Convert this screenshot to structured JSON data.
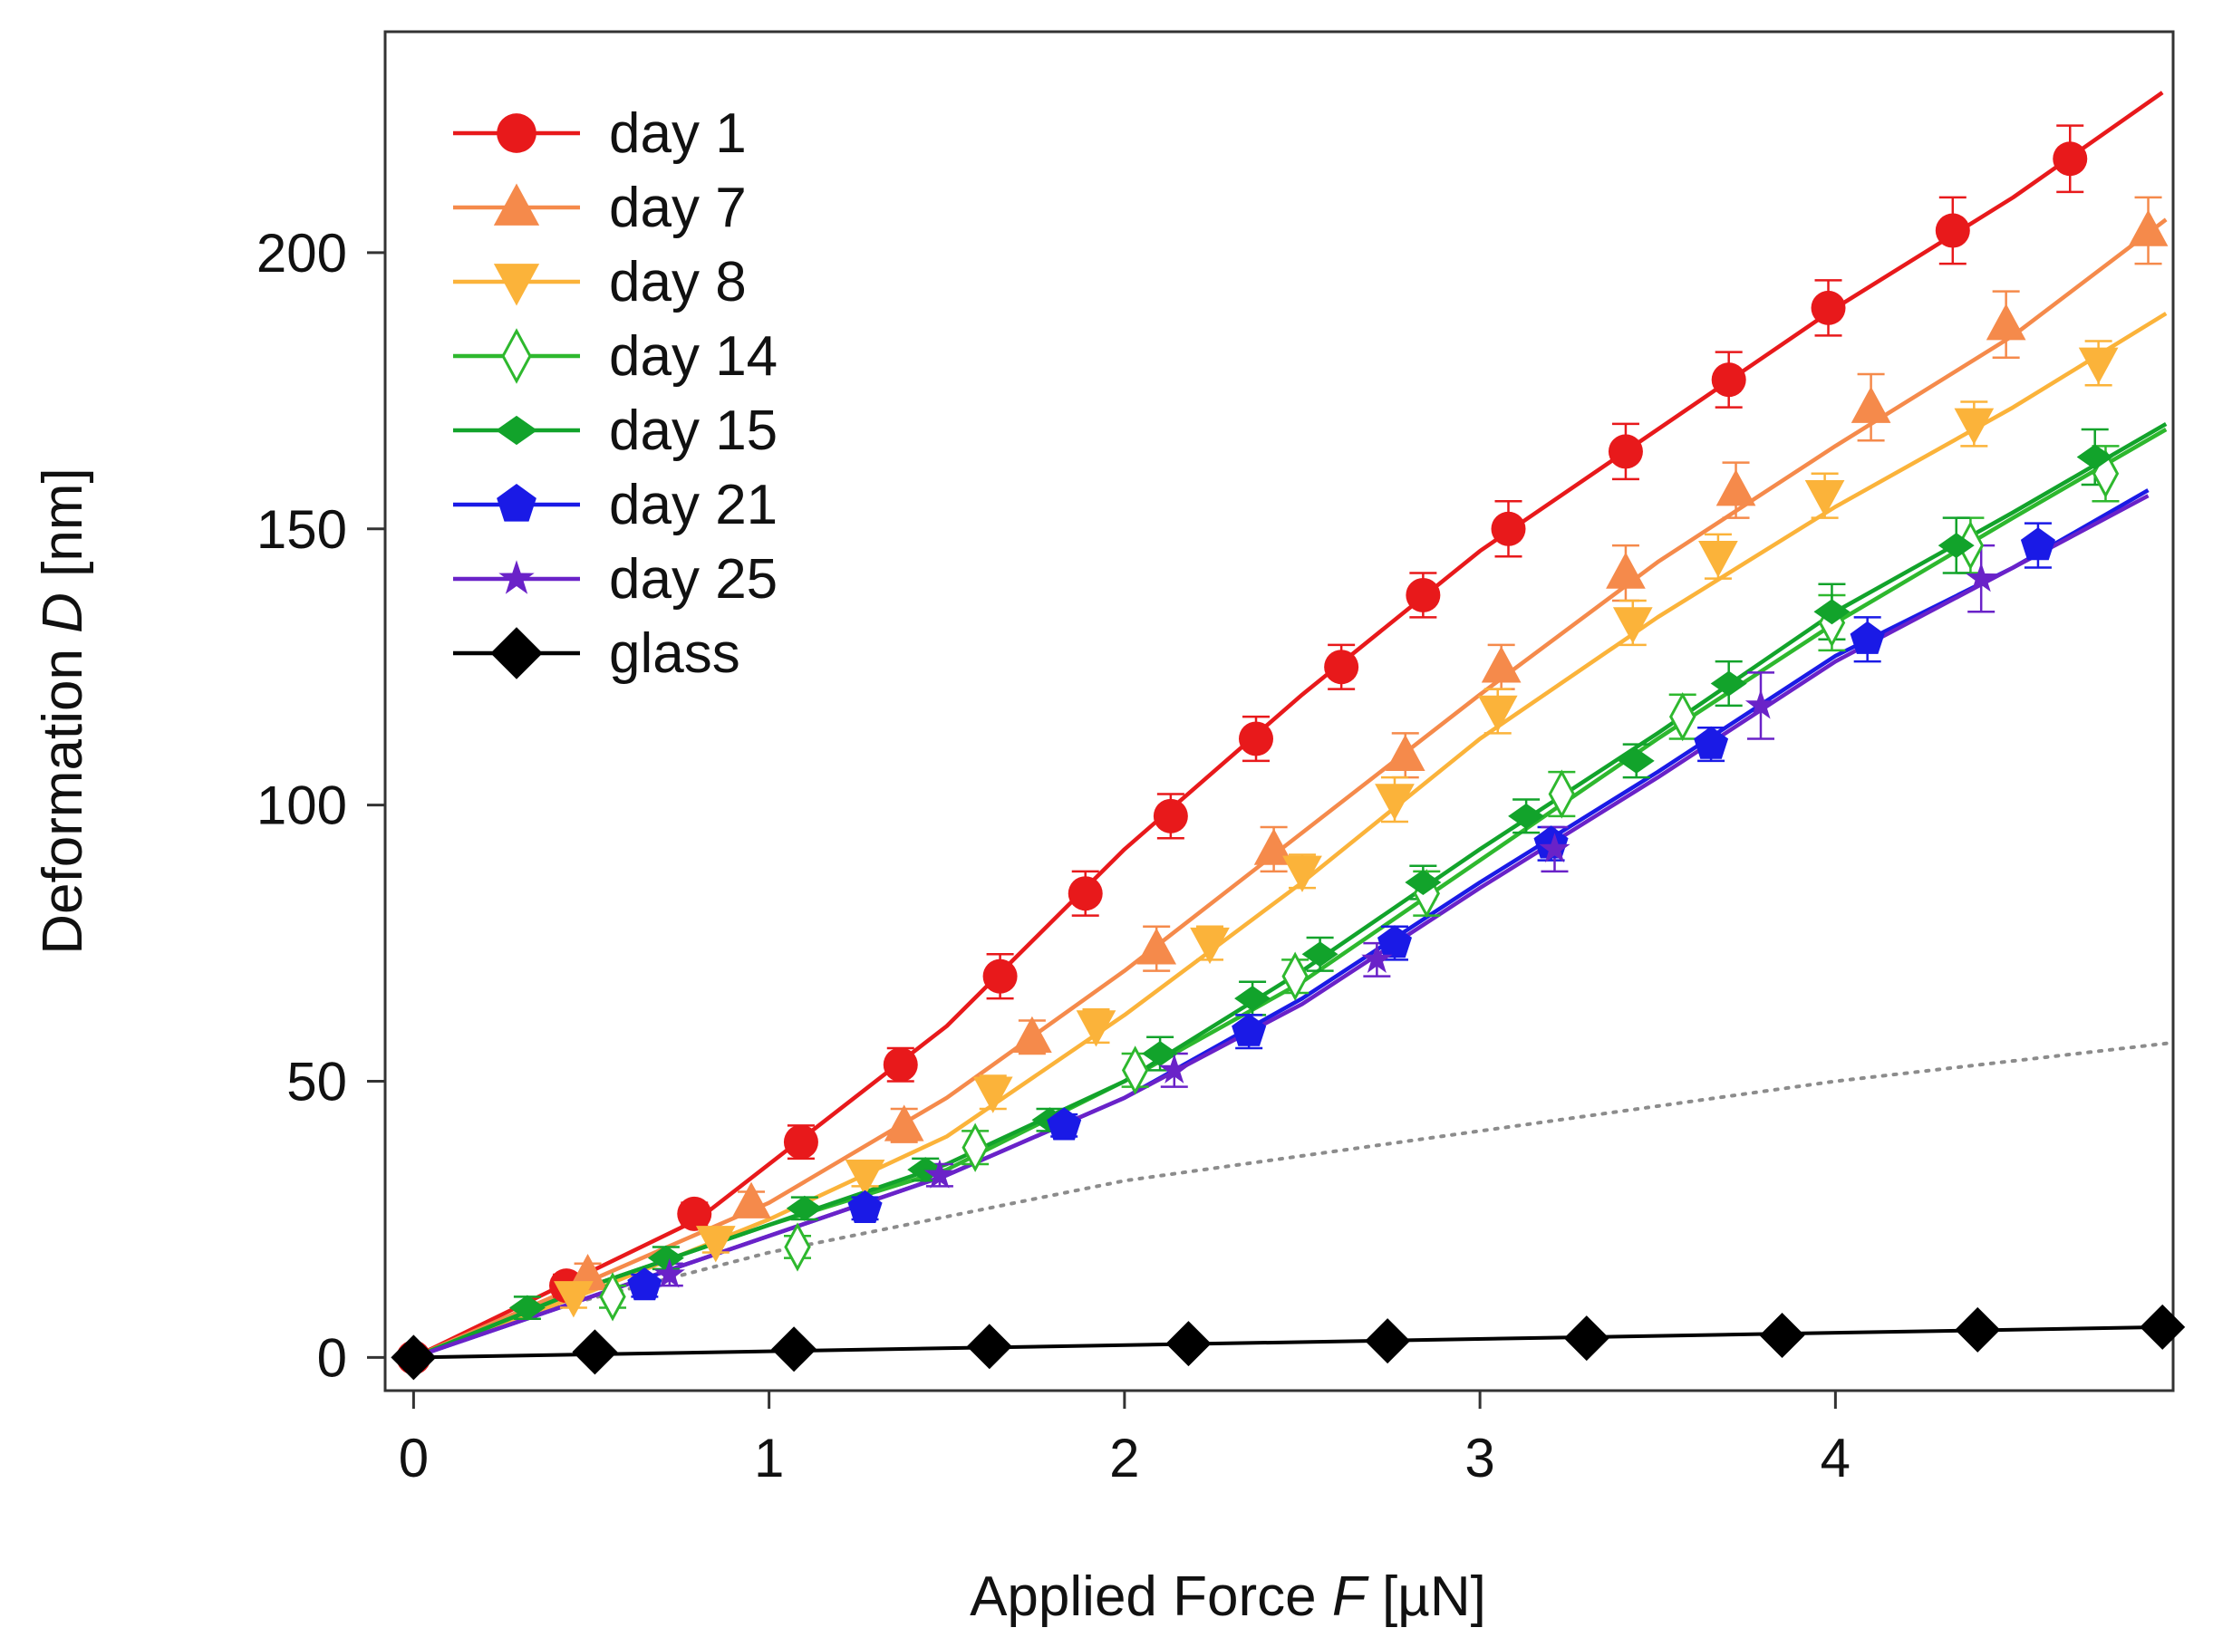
{
  "chart_data": {
    "type": "line",
    "title": "",
    "xlabel": {
      "prefix": "Applied Force ",
      "symbol": "F",
      "unit": " [µN]"
    },
    "ylabel": {
      "prefix": "Deformation ",
      "symbol": "D",
      "unit": " [nm]"
    },
    "xlim": [
      -0.08,
      4.95
    ],
    "ylim": [
      -6,
      240
    ],
    "xticks": [
      0,
      1,
      2,
      3,
      4
    ],
    "yticks": [
      0,
      50,
      100,
      150,
      200
    ],
    "grid": false,
    "legend_position": "top-left",
    "series": [
      {
        "name": "day 1",
        "color": "#e8191b",
        "marker": "circle",
        "points": [
          [
            0,
            0
          ],
          [
            0.43,
            13
          ],
          [
            0.79,
            26
          ],
          [
            1.09,
            39
          ],
          [
            1.37,
            53
          ],
          [
            1.65,
            69
          ],
          [
            1.89,
            84
          ],
          [
            2.13,
            98
          ],
          [
            2.37,
            112
          ],
          [
            2.61,
            125
          ],
          [
            2.84,
            138
          ],
          [
            3.08,
            150
          ],
          [
            3.41,
            164
          ],
          [
            3.7,
            177
          ],
          [
            3.98,
            190
          ],
          [
            4.33,
            204
          ],
          [
            4.66,
            217
          ]
        ],
        "errors": [
          0,
          2,
          2,
          3,
          3,
          4,
          4,
          4,
          4,
          4,
          4,
          5,
          5,
          5,
          5,
          6,
          6
        ],
        "fit": [
          [
            0,
            0
          ],
          [
            0.8,
            25
          ],
          [
            1.5,
            60
          ],
          [
            2.0,
            92
          ],
          [
            2.5,
            120
          ],
          [
            3.0,
            146
          ],
          [
            3.5,
            168
          ],
          [
            4.0,
            190
          ],
          [
            4.5,
            210
          ],
          [
            4.92,
            229
          ]
        ]
      },
      {
        "name": "day 7",
        "color": "#f58a4b",
        "marker": "triangle-up",
        "points": [
          [
            0.49,
            15
          ],
          [
            0.95,
            28
          ],
          [
            1.38,
            42
          ],
          [
            1.74,
            58
          ],
          [
            2.09,
            74
          ],
          [
            2.42,
            92
          ],
          [
            2.79,
            109
          ],
          [
            3.06,
            125
          ],
          [
            3.41,
            142
          ],
          [
            3.72,
            157
          ],
          [
            4.1,
            172
          ],
          [
            4.48,
            187
          ],
          [
            4.88,
            204
          ]
        ],
        "errors": [
          2,
          2,
          3,
          3,
          4,
          4,
          4,
          4,
          5,
          5,
          6,
          6,
          6
        ],
        "fit": [
          [
            0,
            0
          ],
          [
            0.5,
            14
          ],
          [
            1.0,
            28
          ],
          [
            1.5,
            47
          ],
          [
            2.0,
            70
          ],
          [
            2.5,
            95
          ],
          [
            3.0,
            120
          ],
          [
            3.5,
            144
          ],
          [
            4.0,
            165
          ],
          [
            4.5,
            185
          ],
          [
            4.93,
            206
          ]
        ]
      },
      {
        "name": "day 8",
        "color": "#fbb33a",
        "marker": "triangle-down",
        "points": [
          [
            0.45,
            11
          ],
          [
            0.85,
            21
          ],
          [
            1.27,
            33
          ],
          [
            1.63,
            48
          ],
          [
            1.92,
            60
          ],
          [
            2.24,
            75
          ],
          [
            2.5,
            88
          ],
          [
            2.76,
            101
          ],
          [
            3.05,
            117
          ],
          [
            3.43,
            133
          ],
          [
            3.67,
            145
          ],
          [
            3.97,
            156
          ],
          [
            4.39,
            169
          ],
          [
            4.74,
            180
          ]
        ],
        "errors": [
          2,
          2,
          2,
          3,
          3,
          3,
          3,
          4,
          4,
          4,
          4,
          4,
          4,
          4
        ],
        "fit": [
          [
            0,
            0
          ],
          [
            0.5,
            12
          ],
          [
            1.0,
            25
          ],
          [
            1.5,
            40
          ],
          [
            2.0,
            62
          ],
          [
            2.5,
            86
          ],
          [
            3.0,
            112
          ],
          [
            3.5,
            134
          ],
          [
            4.0,
            154
          ],
          [
            4.5,
            172
          ],
          [
            4.93,
            189
          ]
        ]
      },
      {
        "name": "day 14",
        "color": "#2eb82e",
        "marker": "diamond-open",
        "points": [
          [
            0.56,
            11
          ],
          [
            1.08,
            20
          ],
          [
            1.58,
            38
          ],
          [
            2.03,
            52
          ],
          [
            2.48,
            69
          ],
          [
            2.85,
            84
          ],
          [
            3.23,
            102
          ],
          [
            3.57,
            116
          ],
          [
            3.99,
            133
          ],
          [
            4.38,
            147
          ],
          [
            4.76,
            160
          ]
        ],
        "errors": [
          2,
          2,
          3,
          3,
          3,
          4,
          4,
          4,
          5,
          5,
          5
        ],
        "fit": [
          [
            0,
            0
          ],
          [
            0.5,
            13
          ],
          [
            1.0,
            24
          ],
          [
            1.5,
            34
          ],
          [
            2.0,
            50
          ],
          [
            2.5,
            68
          ],
          [
            3.0,
            90
          ],
          [
            3.5,
            112
          ],
          [
            4.0,
            133
          ],
          [
            4.5,
            152
          ],
          [
            4.93,
            168
          ]
        ]
      },
      {
        "name": "day 15",
        "color": "#12a32b",
        "marker": "diamond-filled",
        "points": [
          [
            0.32,
            9
          ],
          [
            0.71,
            18
          ],
          [
            1.1,
            27
          ],
          [
            1.44,
            34
          ],
          [
            1.79,
            43
          ],
          [
            2.1,
            55
          ],
          [
            2.36,
            65
          ],
          [
            2.55,
            73
          ],
          [
            2.84,
            86
          ],
          [
            3.13,
            98
          ],
          [
            3.44,
            108
          ],
          [
            3.7,
            122
          ],
          [
            3.99,
            135
          ],
          [
            4.34,
            147
          ],
          [
            4.73,
            163
          ]
        ],
        "errors": [
          2,
          2,
          2,
          2,
          2,
          3,
          3,
          3,
          3,
          3,
          3,
          4,
          5,
          5,
          5
        ],
        "fit": [
          [
            0,
            0
          ],
          [
            0.5,
            13
          ],
          [
            1.0,
            24
          ],
          [
            1.5,
            35
          ],
          [
            2.0,
            50
          ],
          [
            2.5,
            70
          ],
          [
            3.0,
            92
          ],
          [
            3.5,
            113
          ],
          [
            4.0,
            135
          ],
          [
            4.5,
            153
          ],
          [
            4.93,
            169
          ]
        ]
      },
      {
        "name": "day 21",
        "color": "#1a1ae6",
        "marker": "pentagon",
        "points": [
          [
            0.65,
            13
          ],
          [
            1.27,
            27
          ],
          [
            1.83,
            42
          ],
          [
            2.35,
            59
          ],
          [
            2.76,
            75
          ],
          [
            3.2,
            93
          ],
          [
            3.65,
            111
          ],
          [
            4.09,
            130
          ],
          [
            4.57,
            147
          ]
        ],
        "errors": [
          2,
          2,
          2,
          3,
          3,
          3,
          3,
          4,
          4
        ],
        "fit": [
          [
            0,
            0
          ],
          [
            0.5,
            11
          ],
          [
            1.0,
            22
          ],
          [
            1.5,
            33
          ],
          [
            2.0,
            47
          ],
          [
            2.5,
            65
          ],
          [
            3.0,
            86
          ],
          [
            3.5,
            106
          ],
          [
            4.0,
            127
          ],
          [
            4.5,
            143
          ],
          [
            4.88,
            157
          ]
        ]
      },
      {
        "name": "day 25",
        "color": "#6a22c8",
        "marker": "star",
        "points": [
          [
            0.72,
            15
          ],
          [
            1.48,
            33
          ],
          [
            2.14,
            52
          ],
          [
            2.71,
            72
          ],
          [
            3.21,
            92
          ],
          [
            3.79,
            118
          ],
          [
            4.41,
            141
          ]
        ],
        "errors": [
          2,
          2,
          3,
          3,
          4,
          6,
          6
        ],
        "fit": [
          [
            0,
            0
          ],
          [
            0.5,
            11
          ],
          [
            1.0,
            22
          ],
          [
            1.5,
            33
          ],
          [
            2.0,
            47
          ],
          [
            2.5,
            64
          ],
          [
            3.0,
            85
          ],
          [
            3.5,
            105
          ],
          [
            4.0,
            126
          ],
          [
            4.5,
            143
          ],
          [
            4.88,
            156
          ]
        ]
      },
      {
        "name": "glass",
        "color": "#000000",
        "marker": "diamond-large",
        "points": [
          [
            0,
            0
          ],
          [
            0.51,
            1
          ],
          [
            1.07,
            1.5
          ],
          [
            1.62,
            2
          ],
          [
            2.18,
            2.5
          ],
          [
            2.74,
            3
          ],
          [
            3.3,
            3.5
          ],
          [
            3.85,
            4
          ],
          [
            4.4,
            5
          ],
          [
            4.92,
            5.5
          ]
        ],
        "errors": [
          0,
          0,
          0,
          0,
          0,
          0,
          0,
          0,
          0,
          0
        ],
        "fit": [
          [
            0,
            0
          ],
          [
            4.92,
            5.5
          ]
        ]
      }
    ],
    "reference_line": {
      "style": "dotted",
      "color": "#8c8c8c",
      "points": [
        [
          0.4,
          9
        ],
        [
          1.0,
          19
        ],
        [
          2.0,
          32
        ],
        [
          3.0,
          41
        ],
        [
          4.0,
          50
        ],
        [
          4.95,
          57
        ]
      ]
    }
  }
}
